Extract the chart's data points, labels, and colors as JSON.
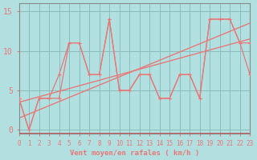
{
  "xlabel": "Vent moyen/en rafales ( km/h )",
  "ylabel": "",
  "xlim": [
    0,
    23
  ],
  "ylim": [
    -0.5,
    16
  ],
  "yticks": [
    0,
    5,
    10,
    15
  ],
  "xticks": [
    0,
    1,
    2,
    3,
    4,
    5,
    6,
    7,
    8,
    9,
    10,
    11,
    12,
    13,
    14,
    15,
    16,
    17,
    18,
    19,
    20,
    21,
    22,
    23
  ],
  "background_color": "#b2e0e0",
  "line_color": "#e87878",
  "grid_color": "#8bbcbc",
  "line1_x": [
    0,
    1,
    2,
    3,
    4,
    5,
    6,
    7,
    8,
    9,
    10,
    11,
    12,
    13,
    14,
    15,
    16,
    17,
    18,
    19,
    20,
    21,
    22,
    23
  ],
  "line1_y": [
    4,
    0,
    4,
    4,
    4,
    11,
    11,
    7,
    7,
    14,
    5,
    5,
    7,
    7,
    4,
    4,
    7,
    7,
    4,
    14,
    14,
    14,
    11,
    11
  ],
  "line2_x": [
    0,
    1,
    2,
    3,
    4,
    5,
    6,
    7,
    8,
    9,
    10,
    11,
    12,
    13,
    14,
    15,
    16,
    17,
    18,
    19,
    20,
    21,
    22,
    23
  ],
  "line2_y": [
    4,
    0,
    4,
    4,
    7,
    11,
    11,
    7,
    7,
    14,
    5,
    5,
    7,
    7,
    4,
    4,
    7,
    7,
    4,
    14,
    14,
    14,
    11,
    7
  ],
  "line_trend_x": [
    0,
    23
  ],
  "line_trend_y": [
    1.5,
    13.5
  ],
  "line_trend2_x": [
    0,
    23
  ],
  "line_trend2_y": [
    3.5,
    11.5
  ]
}
